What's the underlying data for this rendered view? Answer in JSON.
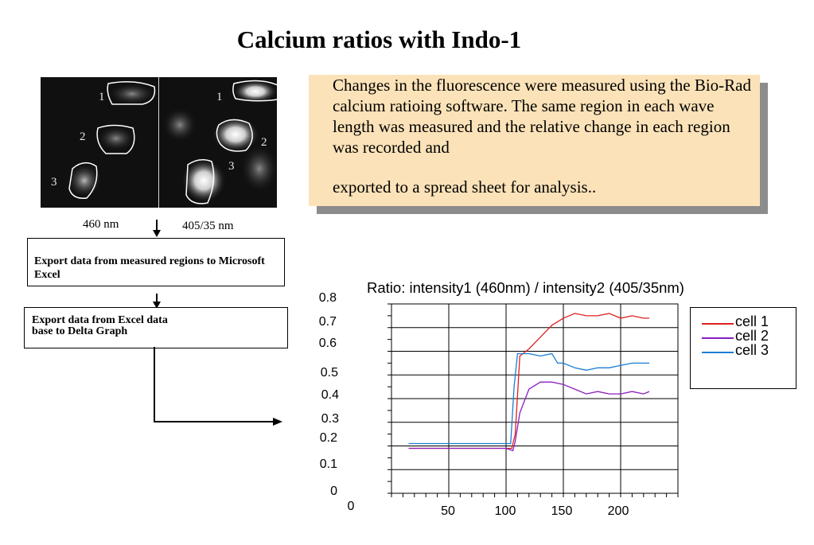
{
  "slide": {
    "title": "Calcium ratios with Indo-1",
    "image_labels": {
      "left_wavelength": "460 nm",
      "right_wavelength": "405/35 nm",
      "cells_left": [
        "1",
        "2",
        "3"
      ],
      "cells_right": [
        "1",
        "2",
        "3"
      ]
    },
    "steps": {
      "step1": "Export data from measured regions to Microsoft Excel",
      "step2_line1": "Export data from Excel data",
      "step2_line2": "base to Delta Graph"
    },
    "note": {
      "line1": "Changes in the fluorescence were measured using the Bio-Rad calcium ratioing software.  The same region in each wave length was measured and the relative change in each region was recorded and",
      "line2": "exported to a spread sheet for analysis.."
    },
    "colors": {
      "note_bg": "#fbe2b8",
      "cell1": "#e02020",
      "cell2": "#8a1ec0",
      "cell3": "#1a7ed4"
    }
  },
  "chart_data": {
    "type": "line",
    "title": "Ratio: intensity1 (460nm) / intensity2 (405/35nm)",
    "xlabel": "",
    "ylabel": "",
    "y_tick_labels": [
      "0.8",
      "0.7",
      "0.6",
      "0.5",
      "0.4",
      "0.3",
      "0.2",
      "0.1",
      "0"
    ],
    "x_tick_labels": [
      "0",
      "50",
      "100",
      "150",
      "200"
    ],
    "xlim": [
      0,
      250
    ],
    "ylim": [
      0,
      0.8
    ],
    "grid": true,
    "legend_position": "right",
    "series": [
      {
        "name": "cell 1",
        "x": [
          15,
          50,
          100,
          105,
          108,
          112,
          120,
          130,
          140,
          150,
          160,
          170,
          180,
          190,
          200,
          210,
          220,
          225
        ],
        "values": [
          0.19,
          0.19,
          0.19,
          0.19,
          0.25,
          0.58,
          0.61,
          0.66,
          0.71,
          0.74,
          0.76,
          0.75,
          0.75,
          0.76,
          0.74,
          0.75,
          0.74,
          0.74
        ]
      },
      {
        "name": "cell 2",
        "x": [
          15,
          50,
          100,
          106,
          108,
          112,
          120,
          130,
          140,
          150,
          160,
          170,
          180,
          190,
          200,
          210,
          220,
          225
        ],
        "values": [
          0.19,
          0.19,
          0.19,
          0.18,
          0.22,
          0.34,
          0.44,
          0.47,
          0.47,
          0.46,
          0.44,
          0.42,
          0.43,
          0.42,
          0.42,
          0.43,
          0.42,
          0.43
        ]
      },
      {
        "name": "cell 3",
        "x": [
          15,
          50,
          100,
          104,
          107,
          110,
          120,
          130,
          140,
          145,
          150,
          160,
          170,
          180,
          190,
          200,
          210,
          220,
          225
        ],
        "values": [
          0.21,
          0.21,
          0.21,
          0.21,
          0.45,
          0.59,
          0.59,
          0.58,
          0.59,
          0.55,
          0.55,
          0.53,
          0.52,
          0.53,
          0.53,
          0.54,
          0.55,
          0.55,
          0.55
        ]
      }
    ]
  }
}
